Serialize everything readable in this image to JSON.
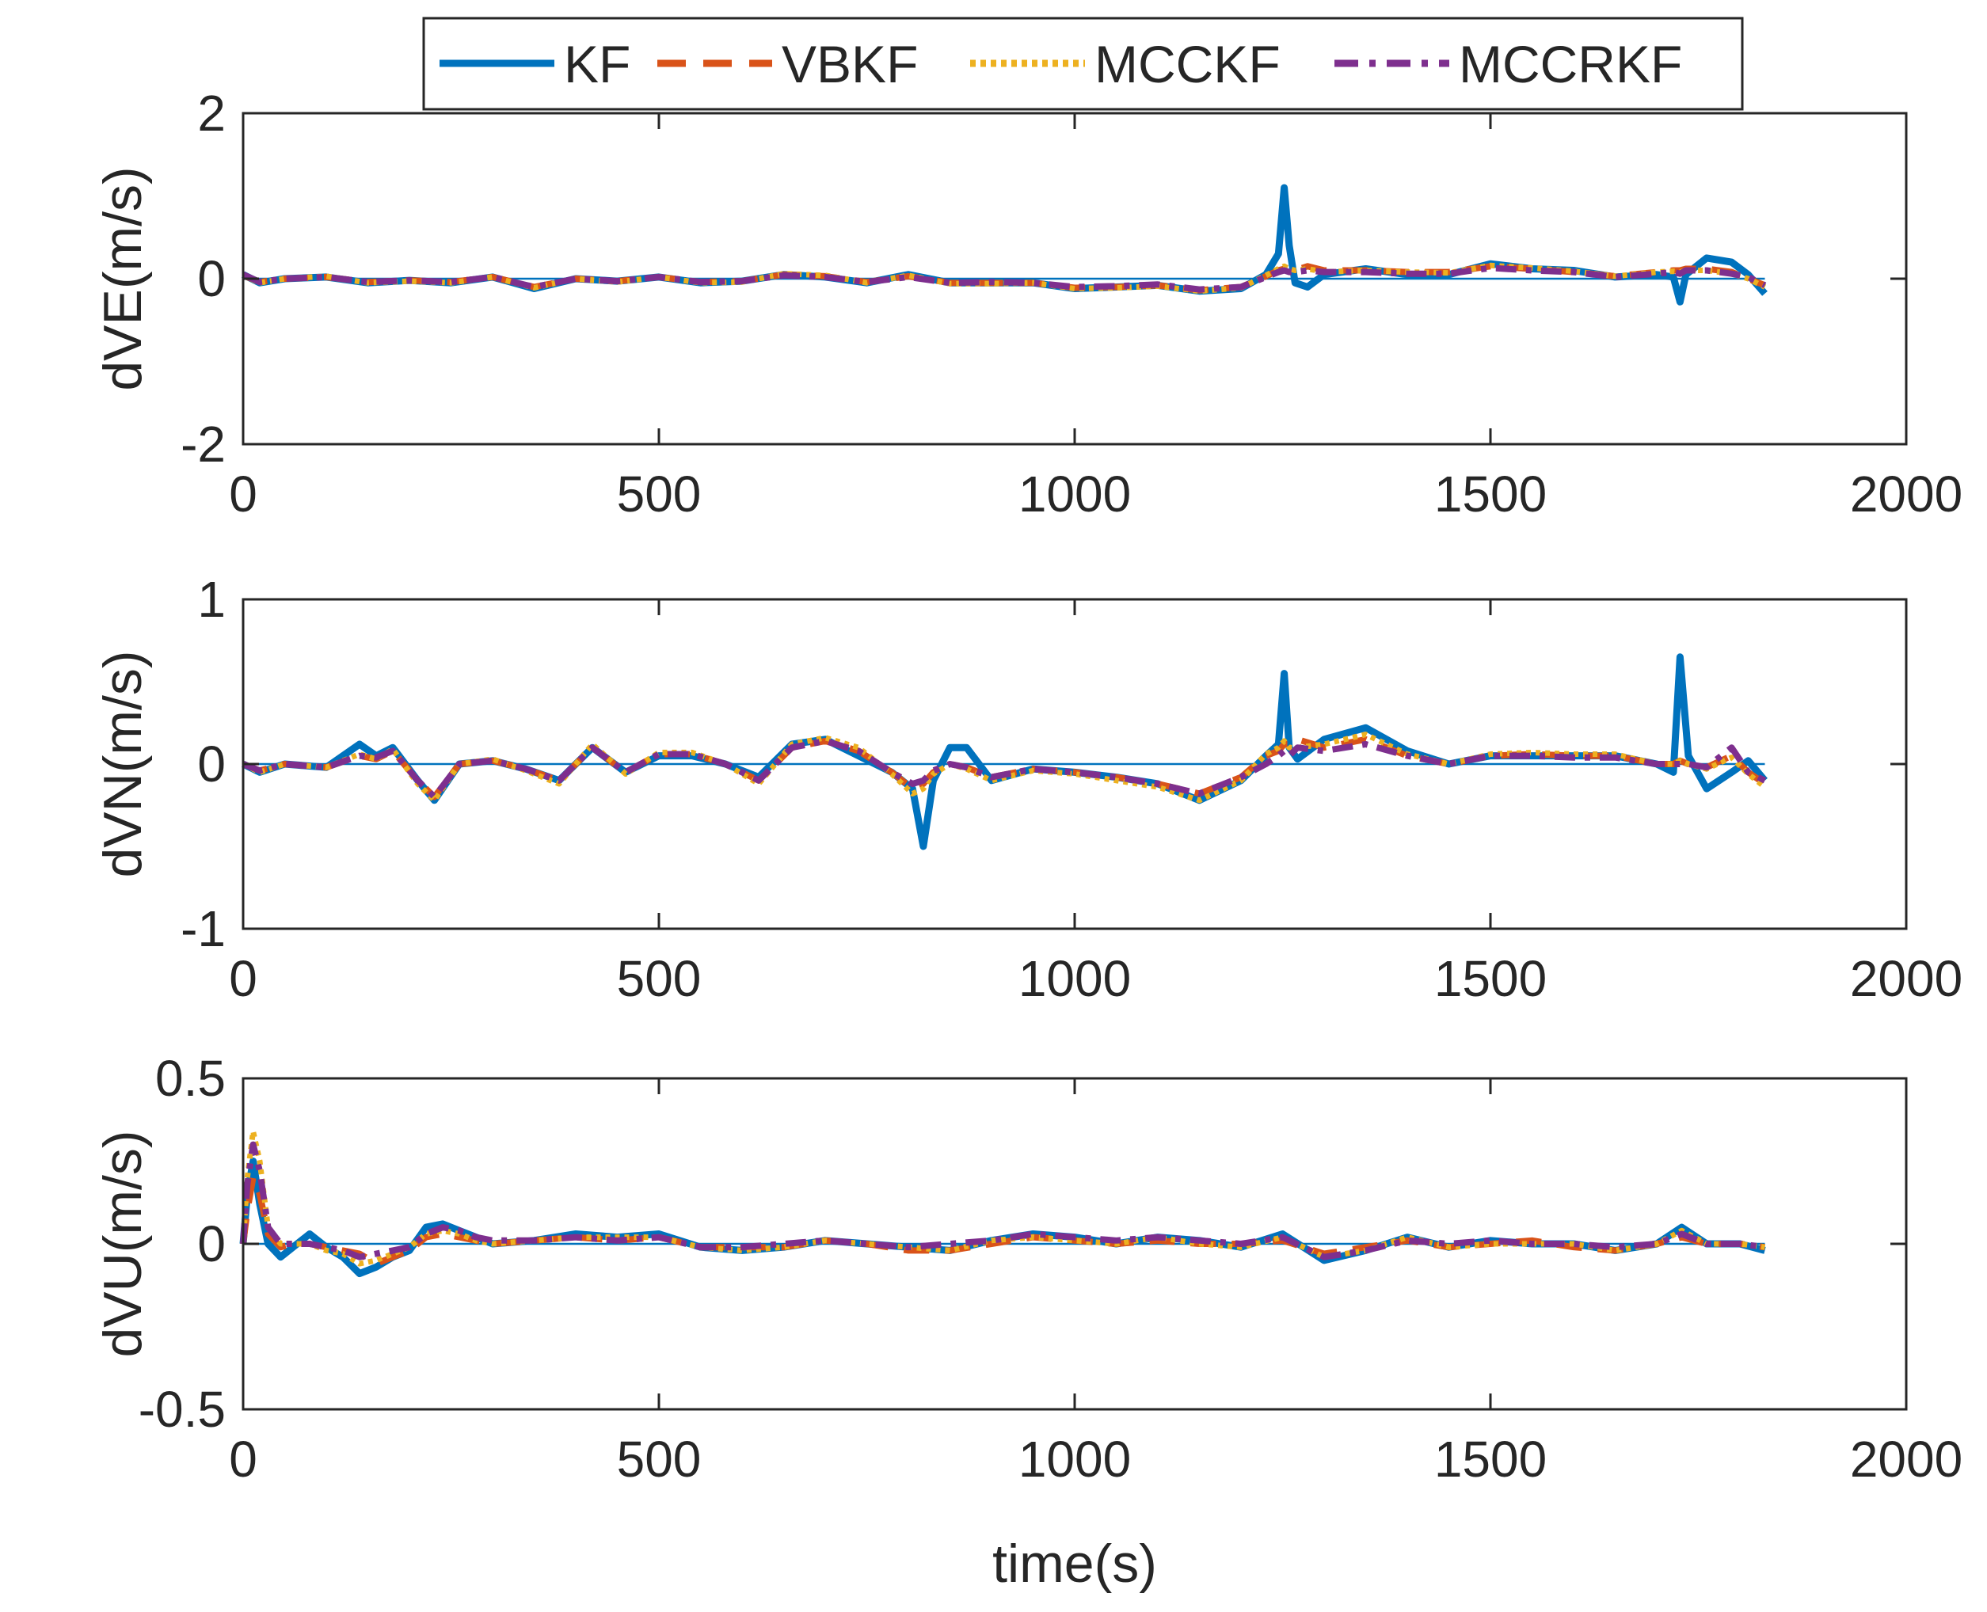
{
  "chart_data": {
    "type": "line",
    "xlabel": "time(s)",
    "legend": {
      "placement": "top",
      "entries": [
        "KF",
        "VBKF",
        "MCCKF",
        "MCCRKF"
      ]
    },
    "series_styles": [
      {
        "name": "KF",
        "color": "#0072BD",
        "style": "solid"
      },
      {
        "name": "VBKF",
        "color": "#D95319",
        "style": "dashed"
      },
      {
        "name": "MCCKF",
        "color": "#EDB120",
        "style": "dotted"
      },
      {
        "name": "MCCRKF",
        "color": "#7E2F8E",
        "style": "dash-dot"
      }
    ],
    "subplots": [
      {
        "ylabel": "dVE(m/s)",
        "xlim": [
          0,
          2000
        ],
        "ylim": [
          -2,
          2
        ],
        "xticks": [
          0,
          500,
          1000,
          1500,
          2000
        ],
        "yticks": [
          -2,
          0,
          2
        ],
        "x": [
          0,
          20,
          50,
          100,
          150,
          200,
          250,
          300,
          350,
          400,
          450,
          500,
          550,
          600,
          650,
          700,
          750,
          800,
          850,
          900,
          950,
          1000,
          1050,
          1100,
          1150,
          1200,
          1230,
          1245,
          1252,
          1258,
          1265,
          1280,
          1300,
          1350,
          1400,
          1450,
          1500,
          1550,
          1600,
          1650,
          1700,
          1720,
          1728,
          1735,
          1760,
          1790,
          1810,
          1830
        ],
        "series": [
          {
            "name": "KF",
            "values": [
              0.05,
              -0.05,
              0.0,
              0.02,
              -0.05,
              -0.02,
              -0.05,
              0.02,
              -0.12,
              0.0,
              -0.03,
              0.02,
              -0.05,
              -0.03,
              0.05,
              0.02,
              -0.05,
              0.05,
              -0.05,
              -0.05,
              -0.05,
              -0.12,
              -0.1,
              -0.08,
              -0.15,
              -0.12,
              0.05,
              0.3,
              1.1,
              0.4,
              -0.05,
              -0.1,
              0.05,
              0.12,
              0.05,
              0.05,
              0.18,
              0.12,
              0.1,
              0.02,
              0.05,
              0.02,
              -0.28,
              0.05,
              0.25,
              0.2,
              0.05,
              -0.18
            ]
          },
          {
            "name": "VBKF",
            "values": [
              0.04,
              -0.04,
              0.0,
              0.02,
              -0.04,
              -0.02,
              -0.04,
              0.02,
              -0.1,
              0.0,
              -0.03,
              0.02,
              -0.04,
              -0.03,
              0.05,
              0.03,
              -0.04,
              0.03,
              -0.05,
              -0.05,
              -0.05,
              -0.11,
              -0.1,
              -0.08,
              -0.14,
              -0.1,
              0.03,
              0.1,
              0.12,
              0.1,
              0.1,
              0.15,
              0.1,
              0.1,
              0.08,
              0.08,
              0.15,
              0.12,
              0.08,
              0.03,
              0.08,
              0.1,
              0.1,
              0.12,
              0.12,
              0.08,
              0.0,
              -0.08
            ]
          },
          {
            "name": "MCCKF",
            "values": [
              0.04,
              -0.05,
              0.0,
              0.03,
              -0.05,
              -0.03,
              -0.05,
              0.02,
              -0.11,
              0.0,
              -0.04,
              0.02,
              -0.05,
              -0.04,
              0.06,
              0.04,
              -0.05,
              0.04,
              -0.06,
              -0.06,
              -0.05,
              -0.12,
              -0.11,
              -0.09,
              -0.15,
              -0.11,
              0.04,
              0.12,
              0.15,
              0.12,
              0.1,
              0.12,
              0.08,
              0.1,
              0.08,
              0.07,
              0.16,
              0.13,
              0.09,
              0.03,
              0.08,
              0.09,
              0.08,
              0.1,
              0.1,
              0.06,
              0.0,
              -0.1
            ]
          },
          {
            "name": "MCCRKF",
            "values": [
              0.05,
              -0.04,
              0.0,
              0.02,
              -0.04,
              -0.02,
              -0.04,
              0.02,
              -0.1,
              0.0,
              -0.03,
              0.02,
              -0.04,
              -0.03,
              0.04,
              0.02,
              -0.04,
              0.02,
              -0.05,
              -0.04,
              -0.05,
              -0.1,
              -0.09,
              -0.07,
              -0.13,
              -0.1,
              0.02,
              0.08,
              0.1,
              0.08,
              0.08,
              0.1,
              0.08,
              0.08,
              0.06,
              0.06,
              0.13,
              0.1,
              0.08,
              0.02,
              0.06,
              0.08,
              0.06,
              0.1,
              0.1,
              0.06,
              0.02,
              -0.08
            ]
          }
        ]
      },
      {
        "ylabel": "dVN(m/s)",
        "xlim": [
          0,
          2000
        ],
        "ylim": [
          -1,
          1
        ],
        "xticks": [
          0,
          500,
          1000,
          1500,
          2000
        ],
        "yticks": [
          -1,
          0,
          1
        ],
        "x": [
          0,
          20,
          50,
          100,
          140,
          160,
          180,
          210,
          230,
          260,
          300,
          340,
          380,
          420,
          460,
          500,
          540,
          580,
          620,
          660,
          700,
          740,
          780,
          805,
          818,
          830,
          850,
          870,
          900,
          950,
          1000,
          1050,
          1100,
          1150,
          1200,
          1230,
          1245,
          1252,
          1258,
          1268,
          1300,
          1350,
          1400,
          1450,
          1500,
          1550,
          1600,
          1650,
          1700,
          1720,
          1728,
          1738,
          1760,
          1790,
          1810,
          1830
        ],
        "series": [
          {
            "name": "KF",
            "values": [
              0.0,
              -0.05,
              0.0,
              -0.02,
              0.12,
              0.05,
              0.1,
              -0.1,
              -0.22,
              0.0,
              0.02,
              -0.03,
              -0.1,
              0.1,
              -0.05,
              0.05,
              0.05,
              0.0,
              -0.08,
              0.12,
              0.15,
              0.05,
              -0.05,
              -0.15,
              -0.5,
              -0.1,
              0.1,
              0.1,
              -0.1,
              -0.03,
              -0.05,
              -0.08,
              -0.12,
              -0.22,
              -0.1,
              0.05,
              0.12,
              0.55,
              0.1,
              0.03,
              0.15,
              0.22,
              0.08,
              0.0,
              0.05,
              0.05,
              0.05,
              0.05,
              0.0,
              -0.05,
              0.65,
              0.05,
              -0.15,
              -0.05,
              0.02,
              -0.1
            ]
          },
          {
            "name": "VBKF",
            "values": [
              0.0,
              -0.04,
              0.0,
              -0.02,
              0.05,
              0.03,
              0.08,
              -0.1,
              -0.2,
              0.0,
              0.02,
              -0.03,
              -0.1,
              0.1,
              -0.05,
              0.06,
              0.06,
              0.0,
              -0.1,
              0.1,
              0.14,
              0.08,
              -0.05,
              -0.15,
              -0.12,
              -0.05,
              0.0,
              -0.02,
              -0.08,
              -0.03,
              -0.05,
              -0.08,
              -0.12,
              -0.18,
              -0.08,
              0.05,
              0.08,
              0.12,
              0.12,
              0.15,
              0.1,
              0.15,
              0.05,
              0.0,
              0.05,
              0.06,
              0.05,
              0.05,
              0.0,
              0.0,
              0.02,
              0.0,
              -0.02,
              0.05,
              -0.05,
              -0.12
            ]
          },
          {
            "name": "MCCKF",
            "values": [
              0.0,
              -0.05,
              0.0,
              -0.02,
              0.06,
              0.03,
              0.09,
              -0.12,
              -0.22,
              0.0,
              0.03,
              -0.04,
              -0.12,
              0.12,
              -0.06,
              0.07,
              0.07,
              0.0,
              -0.12,
              0.12,
              0.16,
              0.1,
              -0.06,
              -0.18,
              -0.15,
              -0.06,
              0.0,
              -0.03,
              -0.1,
              -0.04,
              -0.06,
              -0.1,
              -0.14,
              -0.22,
              -0.1,
              0.06,
              0.1,
              0.14,
              0.1,
              0.1,
              0.12,
              0.18,
              0.06,
              0.0,
              0.06,
              0.07,
              0.06,
              0.06,
              0.0,
              0.0,
              0.02,
              0.0,
              -0.03,
              0.04,
              -0.06,
              -0.14
            ]
          },
          {
            "name": "MCCRKF",
            "values": [
              0.0,
              -0.04,
              0.0,
              -0.02,
              0.05,
              0.04,
              0.08,
              -0.1,
              -0.2,
              0.0,
              0.02,
              -0.03,
              -0.1,
              0.1,
              -0.05,
              0.06,
              0.06,
              0.0,
              -0.1,
              0.1,
              0.14,
              0.08,
              -0.05,
              -0.12,
              -0.1,
              -0.04,
              0.0,
              -0.02,
              -0.08,
              -0.03,
              -0.05,
              -0.08,
              -0.12,
              -0.18,
              -0.08,
              0.0,
              0.05,
              0.08,
              0.05,
              0.1,
              0.08,
              0.12,
              0.05,
              0.0,
              0.05,
              0.05,
              0.04,
              0.04,
              0.0,
              0.0,
              0.0,
              0.0,
              -0.02,
              0.1,
              -0.05,
              -0.1
            ]
          }
        ]
      },
      {
        "ylabel": "dVU(m/s)",
        "xlim": [
          0,
          2000
        ],
        "ylim": [
          -0.5,
          0.5
        ],
        "xticks": [
          0,
          500,
          1000,
          1500,
          2000
        ],
        "yticks": [
          -0.5,
          0,
          0.5
        ],
        "x": [
          0,
          5,
          12,
          20,
          30,
          45,
          60,
          80,
          100,
          120,
          140,
          160,
          180,
          200,
          220,
          240,
          260,
          280,
          300,
          350,
          400,
          450,
          500,
          550,
          600,
          650,
          700,
          750,
          800,
          850,
          900,
          950,
          1000,
          1050,
          1100,
          1150,
          1200,
          1250,
          1300,
          1350,
          1400,
          1450,
          1500,
          1550,
          1600,
          1650,
          1700,
          1730,
          1760,
          1800,
          1830
        ],
        "series": [
          {
            "name": "KF",
            "values": [
              0.0,
              0.15,
              0.25,
              0.12,
              0.0,
              -0.04,
              -0.01,
              0.03,
              -0.01,
              -0.04,
              -0.09,
              -0.07,
              -0.04,
              -0.02,
              0.05,
              0.06,
              0.04,
              0.02,
              0.0,
              0.01,
              0.03,
              0.02,
              0.03,
              -0.01,
              -0.02,
              -0.01,
              0.01,
              0.0,
              -0.01,
              -0.02,
              0.01,
              0.03,
              0.02,
              0.0,
              0.02,
              0.01,
              -0.01,
              0.03,
              -0.05,
              -0.02,
              0.02,
              -0.01,
              0.01,
              0.0,
              0.0,
              -0.02,
              0.0,
              0.05,
              0.0,
              0.0,
              -0.02
            ]
          },
          {
            "name": "VBKF",
            "values": [
              0.0,
              0.1,
              0.2,
              0.15,
              0.03,
              -0.01,
              0.0,
              0.0,
              -0.01,
              -0.02,
              -0.03,
              -0.06,
              -0.04,
              -0.02,
              0.02,
              0.03,
              0.02,
              0.01,
              0.0,
              0.01,
              0.02,
              0.01,
              0.02,
              -0.01,
              -0.01,
              -0.01,
              0.01,
              0.0,
              -0.02,
              -0.02,
              0.0,
              0.02,
              0.01,
              0.0,
              0.01,
              0.0,
              0.0,
              0.01,
              -0.03,
              -0.01,
              0.01,
              -0.01,
              0.0,
              0.01,
              -0.01,
              -0.02,
              0.0,
              0.02,
              0.0,
              0.0,
              -0.01
            ]
          },
          {
            "name": "MCCKF",
            "values": [
              0.0,
              0.2,
              0.34,
              0.25,
              0.05,
              0.0,
              0.0,
              0.0,
              -0.02,
              -0.03,
              -0.06,
              -0.05,
              -0.03,
              -0.01,
              0.03,
              0.04,
              0.03,
              0.01,
              0.0,
              0.01,
              0.02,
              0.02,
              0.02,
              -0.01,
              -0.02,
              -0.01,
              0.01,
              0.0,
              -0.01,
              -0.02,
              0.01,
              0.02,
              0.01,
              0.0,
              0.02,
              0.0,
              -0.01,
              0.02,
              -0.04,
              -0.02,
              0.02,
              -0.01,
              0.0,
              0.0,
              0.0,
              -0.02,
              0.0,
              0.04,
              0.0,
              0.0,
              -0.01
            ]
          },
          {
            "name": "MCCRKF",
            "values": [
              0.0,
              0.18,
              0.3,
              0.22,
              0.05,
              0.0,
              0.0,
              0.0,
              -0.01,
              -0.02,
              -0.04,
              -0.03,
              -0.02,
              -0.01,
              0.03,
              0.05,
              0.04,
              0.02,
              0.01,
              0.01,
              0.02,
              0.01,
              0.02,
              -0.01,
              -0.01,
              0.0,
              0.01,
              0.0,
              -0.01,
              0.0,
              0.01,
              0.03,
              0.02,
              0.01,
              0.02,
              0.01,
              0.0,
              0.02,
              -0.04,
              -0.02,
              0.01,
              0.0,
              0.01,
              0.0,
              0.0,
              -0.01,
              0.0,
              0.03,
              0.0,
              0.0,
              -0.01
            ]
          }
        ]
      }
    ]
  }
}
